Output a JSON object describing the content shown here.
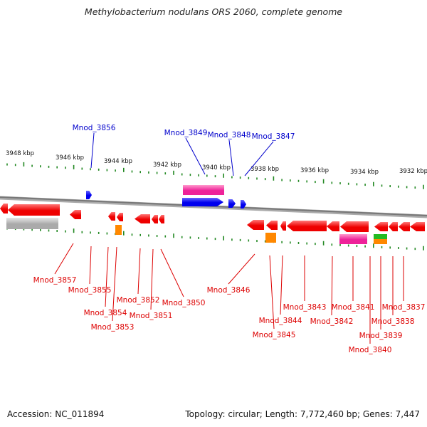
{
  "title": "Methylobacterium nodulans ORS 2060, complete genome",
  "footer": {
    "accession": "Accession: NC_011894",
    "summary": "Topology: circular; Length: 7,772,460 bp; Genes: 7,447"
  },
  "ruler_labels": [
    "3948 kbp",
    "3946 kbp",
    "3944 kbp",
    "3942 kbp",
    "3940 kbp",
    "3938 kbp",
    "3936 kbp",
    "3934 kbp",
    "3932 kbp"
  ],
  "colors": {
    "forward_label": "#0000cc",
    "reverse_label": "#dd0000",
    "red_gene": "#ee0000",
    "blue_gene": "#0000ee",
    "magenta_feature": "#ee2299",
    "orange_feature": "#ff8800",
    "green_feature": "#22bb22",
    "gray_feature": "#aaaaaa",
    "backbone": "#777777",
    "ticks": "#228822"
  },
  "forward_labels": [
    "Mnod_3856",
    "Mnod_3849",
    "Mnod_3848",
    "Mnod_3847"
  ],
  "reverse_labels": [
    "Mnod_3857",
    "Mnod_3855",
    "Mnod_3854",
    "Mnod_3853",
    "Mnod_3852",
    "Mnod_3851",
    "Mnod_3850",
    "Mnod_3846",
    "Mnod_3845",
    "Mnod_3844",
    "Mnod_3843",
    "Mnod_3842",
    "Mnod_3841",
    "Mnod_3840",
    "Mnod_3839",
    "Mnod_3838",
    "Mnod_3837"
  ]
}
